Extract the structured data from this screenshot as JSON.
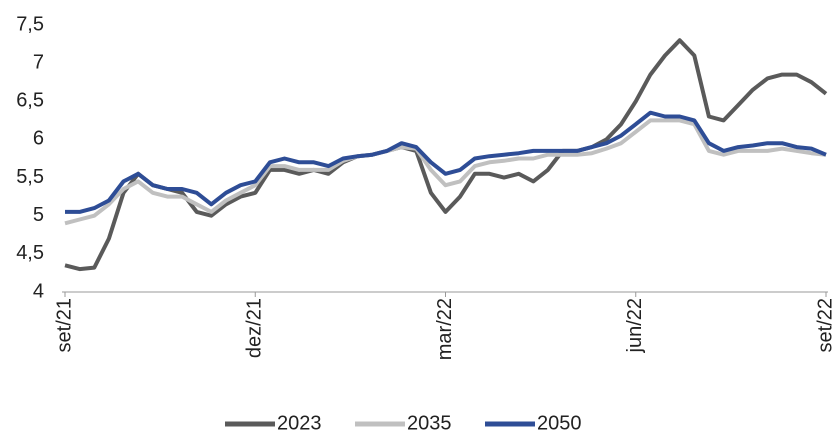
{
  "chart_data": {
    "type": "line",
    "categories": [
      "set/21",
      null,
      null,
      null,
      null,
      null,
      null,
      null,
      null,
      null,
      null,
      null,
      null,
      "dez/21",
      null,
      null,
      null,
      null,
      null,
      null,
      null,
      null,
      null,
      null,
      null,
      null,
      "mar/22",
      null,
      null,
      null,
      null,
      null,
      null,
      null,
      null,
      null,
      null,
      null,
      null,
      "jun/22",
      null,
      null,
      null,
      null,
      null,
      null,
      null,
      null,
      null,
      null,
      null,
      null,
      "set/22"
    ],
    "series": [
      {
        "name": "2023",
        "color": "#5a5a5a",
        "values": [
          4.35,
          4.3,
          4.32,
          4.7,
          5.3,
          5.55,
          5.4,
          5.35,
          5.3,
          5.05,
          5.0,
          5.15,
          5.25,
          5.3,
          5.6,
          5.6,
          5.55,
          5.6,
          5.55,
          5.7,
          5.78,
          5.8,
          5.85,
          5.9,
          5.85,
          5.3,
          5.05,
          5.25,
          5.55,
          5.55,
          5.5,
          5.55,
          5.45,
          5.6,
          5.85,
          5.85,
          5.9,
          6.0,
          6.2,
          6.5,
          6.85,
          7.1,
          7.3,
          7.1,
          6.3,
          6.25,
          6.45,
          6.65,
          6.8,
          6.85,
          6.85,
          6.75,
          6.6
        ]
      },
      {
        "name": "2035",
        "color": "#c0c0c0",
        "values": [
          4.9,
          4.95,
          5.0,
          5.15,
          5.35,
          5.45,
          5.3,
          5.25,
          5.25,
          5.15,
          5.05,
          5.2,
          5.3,
          5.4,
          5.65,
          5.65,
          5.6,
          5.6,
          5.6,
          5.72,
          5.78,
          5.8,
          5.85,
          5.9,
          5.88,
          5.6,
          5.4,
          5.45,
          5.65,
          5.7,
          5.72,
          5.75,
          5.75,
          5.8,
          5.8,
          5.8,
          5.82,
          5.88,
          5.95,
          6.1,
          6.25,
          6.25,
          6.25,
          6.2,
          5.85,
          5.8,
          5.85,
          5.85,
          5.85,
          5.88,
          5.85,
          5.82,
          5.8
        ]
      },
      {
        "name": "2050",
        "color": "#2e4d96",
        "values": [
          5.05,
          5.05,
          5.1,
          5.2,
          5.45,
          5.55,
          5.4,
          5.35,
          5.35,
          5.3,
          5.15,
          5.3,
          5.4,
          5.45,
          5.7,
          5.75,
          5.7,
          5.7,
          5.65,
          5.75,
          5.78,
          5.8,
          5.85,
          5.95,
          5.9,
          5.7,
          5.55,
          5.6,
          5.75,
          5.78,
          5.8,
          5.82,
          5.85,
          5.85,
          5.85,
          5.85,
          5.9,
          5.95,
          6.05,
          6.2,
          6.35,
          6.3,
          6.3,
          6.25,
          5.95,
          5.85,
          5.9,
          5.92,
          5.95,
          5.95,
          5.9,
          5.88,
          5.8
        ]
      }
    ],
    "ylim": [
      4,
      7.5
    ],
    "yticks": [
      4,
      {
        "value": 4.5,
        "label": "4,5"
      },
      5,
      {
        "value": 5.5,
        "label": "5,5"
      },
      6,
      {
        "value": 6.5,
        "label": "6,5"
      },
      7,
      {
        "value": 7.5,
        "label": "7,5"
      }
    ],
    "grid": false,
    "legend": "bottom"
  }
}
